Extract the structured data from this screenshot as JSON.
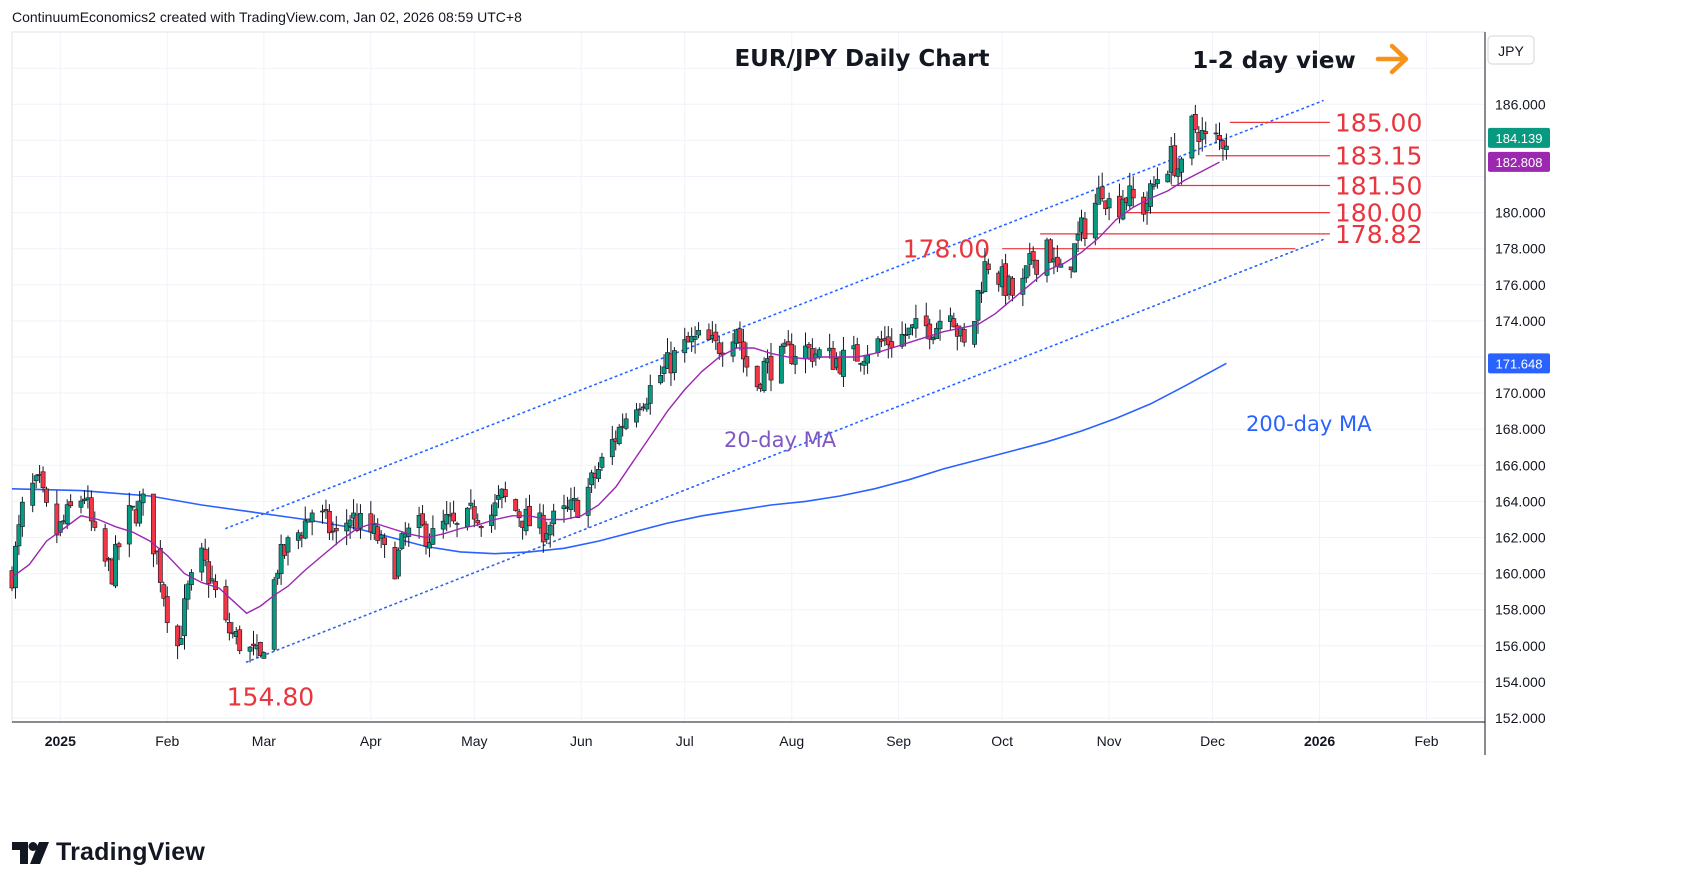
{
  "header": {
    "credit": "ContinuumEconomics2 created with TradingView.com, Jan 02, 2026 08:59 UTC+8"
  },
  "footer": {
    "brand": "TradingView"
  },
  "chart_data": {
    "type": "candlestick",
    "title": "EUR/JPY Daily Chart",
    "subtitle": "1-2 day view",
    "currency": "JPY",
    "ylim": [
      152,
      189
    ],
    "yticks": [
      "152.000",
      "154.000",
      "156.000",
      "158.000",
      "160.000",
      "162.000",
      "164.000",
      "166.000",
      "168.000",
      "170.000",
      "174.000",
      "176.000",
      "178.000",
      "180.000",
      "186.000"
    ],
    "xticks": [
      {
        "label": "2025",
        "t": 14,
        "bold": true
      },
      {
        "label": "Feb",
        "t": 45
      },
      {
        "label": "Mar",
        "t": 73
      },
      {
        "label": "Apr",
        "t": 104
      },
      {
        "label": "May",
        "t": 134
      },
      {
        "label": "Jun",
        "t": 165
      },
      {
        "label": "Jul",
        "t": 195
      },
      {
        "label": "Aug",
        "t": 226
      },
      {
        "label": "Sep",
        "t": 257
      },
      {
        "label": "Oct",
        "t": 287
      },
      {
        "label": "Nov",
        "t": 318
      },
      {
        "label": "Dec",
        "t": 348
      },
      {
        "label": "2026",
        "t": 379,
        "bold": true
      },
      {
        "label": "Feb",
        "t": 410
      }
    ],
    "price_tags": [
      {
        "value": 184.139,
        "label": "184.139",
        "color": "#089981"
      },
      {
        "value": 182.808,
        "label": "182.808",
        "color": "#9c27b0"
      },
      {
        "value": 171.648,
        "label": "171.648",
        "color": "#2962ff"
      }
    ],
    "levels": [
      {
        "label": "185.00",
        "value": 185.0,
        "t0": 353,
        "t1": 382
      },
      {
        "label": "183.15",
        "value": 183.15,
        "t0": 346,
        "t1": 382
      },
      {
        "label": "181.50",
        "value": 181.5,
        "t0": 336,
        "t1": 382
      },
      {
        "label": "180.00",
        "value": 180.0,
        "t0": 322,
        "t1": 382
      },
      {
        "label": "178.82",
        "value": 178.82,
        "t0": 298,
        "t1": 382
      },
      {
        "label": "178.00",
        "value": 178.0,
        "t0": 287,
        "t1": 372
      }
    ],
    "point_labels": [
      {
        "label": "154.80",
        "t": 72,
        "value": 154.8
      }
    ],
    "ma_labels": [
      {
        "label": "20-day MA",
        "color": "#7e57c2"
      },
      {
        "label": "200-day MA",
        "color": "#2962ff"
      }
    ],
    "anchors": [
      [
        0,
        160
      ],
      [
        4,
        164.6
      ],
      [
        8,
        164.8
      ],
      [
        12,
        162
      ],
      [
        14,
        162.5
      ],
      [
        17,
        163.5
      ],
      [
        21,
        164.4
      ],
      [
        25,
        161
      ],
      [
        29,
        160.1
      ],
      [
        33,
        163
      ],
      [
        38,
        163.8
      ],
      [
        42,
        161
      ],
      [
        45,
        158
      ],
      [
        48,
        156
      ],
      [
        51,
        159
      ],
      [
        55,
        160.8
      ],
      [
        58,
        159.5
      ],
      [
        62,
        157
      ],
      [
        66,
        156.2
      ],
      [
        70,
        155.5
      ],
      [
        72,
        155.1
      ],
      [
        74,
        157.5
      ],
      [
        77,
        160.5
      ],
      [
        80,
        161.5
      ],
      [
        84,
        162.5
      ],
      [
        87,
        163.5
      ],
      [
        90,
        163
      ],
      [
        94,
        162
      ],
      [
        98,
        163.2
      ],
      [
        102,
        162.5
      ],
      [
        106,
        162
      ],
      [
        110,
        160
      ],
      [
        114,
        162
      ],
      [
        118,
        162.5
      ],
      [
        122,
        162
      ],
      [
        126,
        162.8
      ],
      [
        130,
        162.3
      ],
      [
        134,
        163.5
      ],
      [
        138,
        163
      ],
      [
        142,
        164.2
      ],
      [
        146,
        163.5
      ],
      [
        150,
        162.8
      ],
      [
        154,
        162.5
      ],
      [
        158,
        163
      ],
      [
        162,
        163.5
      ],
      [
        165,
        164
      ],
      [
        168,
        165
      ],
      [
        172,
        166.5
      ],
      [
        176,
        168
      ],
      [
        180,
        169.5
      ],
      [
        184,
        170
      ],
      [
        188,
        171
      ],
      [
        192,
        172
      ],
      [
        196,
        172.7
      ],
      [
        200,
        173
      ],
      [
        204,
        172.5
      ],
      [
        208,
        173.2
      ],
      [
        210,
        173.8
      ],
      [
        212,
        172
      ],
      [
        214,
        171
      ],
      [
        216,
        170.5
      ],
      [
        218,
        171.5
      ],
      [
        220,
        171.5
      ],
      [
        224,
        172
      ],
      [
        228,
        172.5
      ],
      [
        232,
        172.3
      ],
      [
        236,
        172
      ],
      [
        240,
        171.8
      ],
      [
        244,
        172
      ],
      [
        248,
        172.5
      ],
      [
        252,
        172.8
      ],
      [
        256,
        173
      ],
      [
        260,
        173.3
      ],
      [
        264,
        173.6
      ],
      [
        268,
        173.8
      ],
      [
        270,
        174.5
      ],
      [
        272,
        175
      ],
      [
        274,
        173.5
      ],
      [
        276,
        172.5
      ],
      [
        278,
        172.8
      ],
      [
        280,
        175.5
      ],
      [
        282,
        177
      ],
      [
        284,
        177.5
      ],
      [
        286,
        176.5
      ],
      [
        288,
        176
      ],
      [
        290,
        175.5
      ],
      [
        292,
        175.3
      ],
      [
        294,
        176.5
      ],
      [
        296,
        177.5
      ],
      [
        298,
        177.2
      ],
      [
        300,
        178.5
      ],
      [
        302,
        177
      ],
      [
        304,
        176.5
      ],
      [
        306,
        177
      ],
      [
        308,
        178
      ],
      [
        310,
        179
      ],
      [
        312,
        179.5
      ],
      [
        314,
        180.5
      ],
      [
        316,
        181.5
      ],
      [
        318,
        180.5
      ],
      [
        320,
        180
      ],
      [
        322,
        181
      ],
      [
        324,
        180.8
      ],
      [
        326,
        180.5
      ],
      [
        328,
        180.3
      ],
      [
        330,
        181
      ],
      [
        332,
        182
      ],
      [
        334,
        182.5
      ],
      [
        336,
        183
      ],
      [
        338,
        182.5
      ],
      [
        340,
        182
      ],
      [
        342,
        184.8
      ],
      [
        344,
        184.6
      ],
      [
        346,
        184
      ],
      [
        348,
        184.2
      ],
      [
        350,
        183.9
      ],
      [
        352,
        184.14
      ]
    ],
    "ma20_anchors": [
      [
        0,
        159.8
      ],
      [
        5,
        160.5
      ],
      [
        10,
        161.8
      ],
      [
        15,
        162.5
      ],
      [
        20,
        163.2
      ],
      [
        25,
        163
      ],
      [
        30,
        162.6
      ],
      [
        35,
        162.3
      ],
      [
        40,
        161.8
      ],
      [
        45,
        161
      ],
      [
        50,
        160
      ],
      [
        55,
        159.5
      ],
      [
        60,
        159.2
      ],
      [
        64,
        158.5
      ],
      [
        68,
        157.8
      ],
      [
        72,
        158.2
      ],
      [
        76,
        158.8
      ],
      [
        80,
        159.3
      ],
      [
        85,
        160.2
      ],
      [
        90,
        161
      ],
      [
        95,
        161.8
      ],
      [
        100,
        162.5
      ],
      [
        105,
        162.8
      ],
      [
        110,
        162.5
      ],
      [
        115,
        162.2
      ],
      [
        120,
        162
      ],
      [
        125,
        162.2
      ],
      [
        130,
        162.5
      ],
      [
        135,
        162.7
      ],
      [
        140,
        163
      ],
      [
        145,
        163.2
      ],
      [
        150,
        163.2
      ],
      [
        155,
        163
      ],
      [
        160,
        163
      ],
      [
        165,
        163.2
      ],
      [
        170,
        163.8
      ],
      [
        175,
        164.8
      ],
      [
        180,
        166.2
      ],
      [
        185,
        167.6
      ],
      [
        190,
        169
      ],
      [
        195,
        170.2
      ],
      [
        200,
        171.2
      ],
      [
        205,
        172
      ],
      [
        210,
        172.5
      ],
      [
        215,
        172.5
      ],
      [
        220,
        172.2
      ],
      [
        225,
        172
      ],
      [
        230,
        171.9
      ],
      [
        235,
        172
      ],
      [
        240,
        172
      ],
      [
        245,
        172
      ],
      [
        250,
        172.2
      ],
      [
        255,
        172.5
      ],
      [
        260,
        172.8
      ],
      [
        265,
        173.1
      ],
      [
        270,
        173.4
      ],
      [
        275,
        173.6
      ],
      [
        280,
        173.8
      ],
      [
        285,
        174.4
      ],
      [
        290,
        175.2
      ],
      [
        295,
        176
      ],
      [
        300,
        176.8
      ],
      [
        305,
        177.2
      ],
      [
        310,
        177.8
      ],
      [
        315,
        178.6
      ],
      [
        320,
        179.6
      ],
      [
        325,
        180.3
      ],
      [
        330,
        180.8
      ],
      [
        335,
        181.2
      ],
      [
        340,
        181.8
      ],
      [
        345,
        182.3
      ],
      [
        350,
        182.8
      ]
    ],
    "ma200_anchors": [
      [
        0,
        164.7
      ],
      [
        20,
        164.6
      ],
      [
        40,
        164.3
      ],
      [
        55,
        163.8
      ],
      [
        70,
        163.4
      ],
      [
        85,
        163
      ],
      [
        100,
        162.5
      ],
      [
        110,
        162
      ],
      [
        120,
        161.5
      ],
      [
        130,
        161.2
      ],
      [
        140,
        161.1
      ],
      [
        150,
        161.2
      ],
      [
        160,
        161.4
      ],
      [
        170,
        161.8
      ],
      [
        180,
        162.3
      ],
      [
        190,
        162.8
      ],
      [
        200,
        163.2
      ],
      [
        210,
        163.5
      ],
      [
        220,
        163.8
      ],
      [
        230,
        164
      ],
      [
        240,
        164.3
      ],
      [
        250,
        164.7
      ],
      [
        260,
        165.2
      ],
      [
        270,
        165.8
      ],
      [
        280,
        166.3
      ],
      [
        290,
        166.8
      ],
      [
        300,
        167.3
      ],
      [
        310,
        167.9
      ],
      [
        320,
        168.6
      ],
      [
        330,
        169.4
      ],
      [
        340,
        170.4
      ],
      [
        352,
        171.65
      ]
    ],
    "channel": {
      "upper": [
        [
          62,
          162.5
        ],
        [
          380,
          186.2
        ]
      ],
      "lower": [
        [
          68,
          155.1
        ],
        [
          380,
          178.5
        ]
      ]
    }
  }
}
